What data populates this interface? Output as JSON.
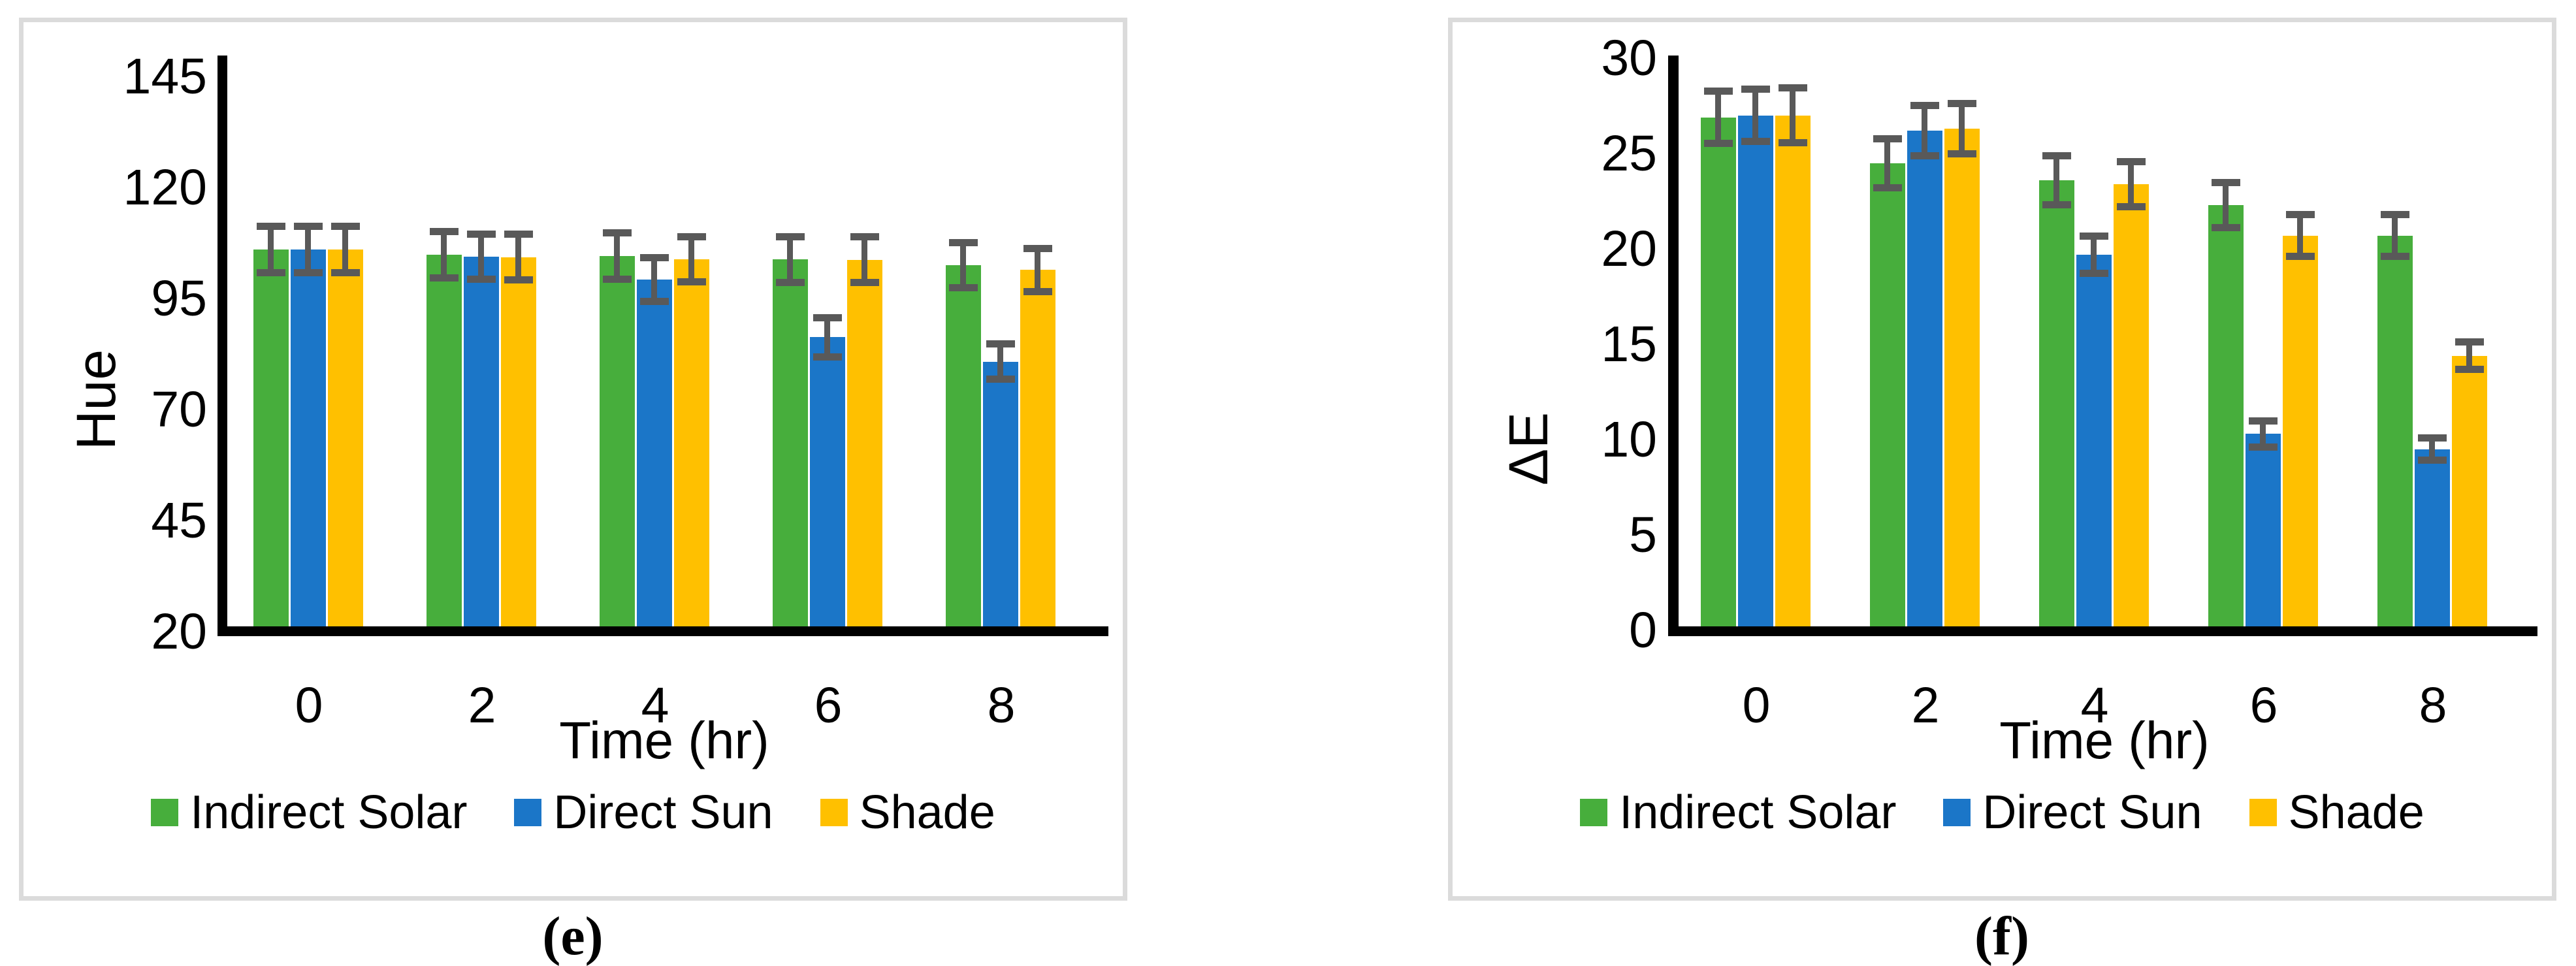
{
  "figure": {
    "background": "#ffffff",
    "panel_border_color": "#DBDBDB",
    "error_bar_color": "#595959",
    "axis_color": "#000000",
    "panels": [
      {
        "label": "(e)"
      },
      {
        "label": "(f)"
      }
    ]
  },
  "chart_data": [
    {
      "type": "bar",
      "panel_label": "(e)",
      "title": "",
      "xlabel": "Time (hr)",
      "ylabel": "Hue",
      "categories": [
        "0",
        "2",
        "4",
        "6",
        "8"
      ],
      "ylim": [
        20,
        145
      ],
      "yticks": [
        145,
        120,
        95,
        70,
        45,
        20
      ],
      "grid": false,
      "legend_position": "bottom",
      "series": [
        {
          "name": "Indirect Solar",
          "color": "#47AE3C",
          "values": [
            106.0,
            104.8,
            104.6,
            103.8,
            102.5
          ],
          "errors": [
            5.3,
            5.3,
            5.3,
            5.2,
            5.1
          ]
        },
        {
          "name": "Direct Sun",
          "color": "#1B76C8",
          "values": [
            106.0,
            104.4,
            99.3,
            86.3,
            80.8
          ],
          "errors": [
            5.3,
            5.2,
            5.0,
            4.5,
            4.1
          ]
        },
        {
          "name": "Shade",
          "color": "#FFC000",
          "values": [
            106.0,
            104.3,
            103.8,
            103.7,
            101.4
          ],
          "errors": [
            5.3,
            5.2,
            5.1,
            5.2,
            4.9
          ]
        }
      ]
    },
    {
      "type": "bar",
      "panel_label": "(f)",
      "title": "",
      "xlabel": "Time (hr)",
      "ylabel": "ΔE",
      "categories": [
        "0",
        "2",
        "4",
        "6",
        "8"
      ],
      "ylim": [
        0,
        30
      ],
      "yticks": [
        30,
        25,
        20,
        15,
        10,
        5,
        0
      ],
      "grid": false,
      "legend_position": "bottom",
      "series": [
        {
          "name": "Indirect Solar",
          "color": "#47AE3C",
          "values": [
            26.9,
            24.5,
            23.6,
            22.3,
            20.7
          ],
          "errors": [
            1.4,
            1.3,
            1.3,
            1.2,
            1.1
          ]
        },
        {
          "name": "Direct Sun",
          "color": "#1B76C8",
          "values": [
            27.0,
            26.2,
            19.7,
            10.3,
            9.5
          ],
          "errors": [
            1.4,
            1.35,
            1.0,
            0.7,
            0.6
          ]
        },
        {
          "name": "Shade",
          "color": "#FFC000",
          "values": [
            27.0,
            26.3,
            23.4,
            20.7,
            14.4
          ],
          "errors": [
            1.45,
            1.35,
            1.2,
            1.1,
            0.75
          ]
        }
      ]
    }
  ]
}
